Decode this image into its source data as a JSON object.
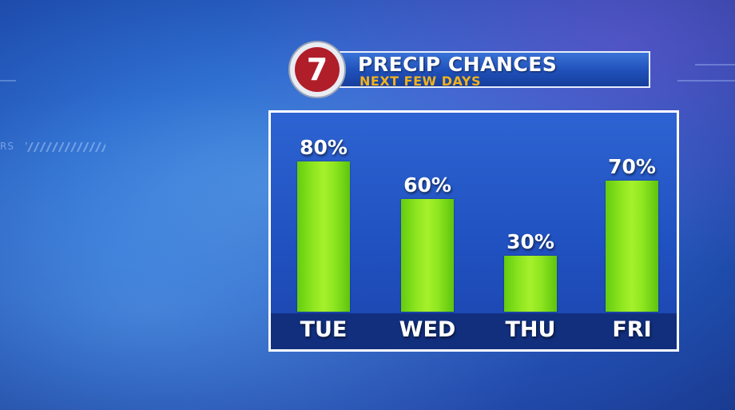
{
  "header": {
    "title": "PRECIP CHANCES",
    "subtitle": "NEXT FEW DAYS",
    "logo_text": "7"
  },
  "colors": {
    "bar": "#8ee620",
    "panel": "#2050bf",
    "day_band": "#122f7e",
    "subtitle": "#f2b21c",
    "logo_red": "#b01e2a"
  },
  "chart_data": {
    "type": "bar",
    "title": "PRECIP CHANCES",
    "subtitle": "NEXT FEW DAYS",
    "categories": [
      "TUE",
      "WED",
      "THU",
      "FRI"
    ],
    "values": [
      80,
      60,
      30,
      70
    ],
    "value_labels": [
      "80%",
      "60%",
      "30%",
      "70%"
    ],
    "ylim": [
      0,
      100
    ],
    "xlabel": "",
    "ylabel": "",
    "grid": false,
    "legend": "none"
  }
}
